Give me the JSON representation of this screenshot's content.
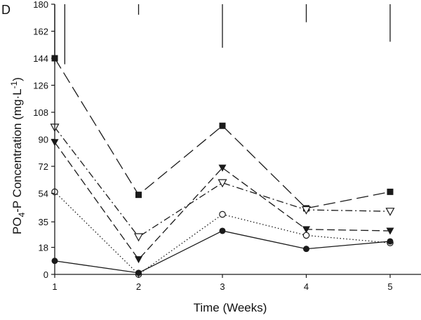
{
  "chart_data": {
    "type": "line",
    "panel_label": "D",
    "xlabel": "Time (Weeks)",
    "ylabel_main": "PO",
    "ylabel_sub": "4",
    "ylabel_rest": "-P Concentration (mg·L",
    "ylabel_sup": "-1",
    "ylabel_close": ")",
    "x": [
      1,
      2,
      3,
      4,
      5
    ],
    "xlim": [
      1,
      5.35
    ],
    "x_ticks": [
      "1",
      "2",
      "3",
      "4",
      "5"
    ],
    "ylim": [
      0,
      180
    ],
    "y_ticks": [
      0,
      18,
      35,
      54,
      72,
      90,
      108,
      126,
      144,
      162,
      180
    ],
    "y_tick_labels": [
      "0",
      "18",
      "35",
      "54",
      "72",
      "90",
      "108",
      "126",
      "144",
      "162",
      "180"
    ],
    "grid": false,
    "series": [
      {
        "name": "filled-square",
        "marker": "square-filled",
        "dash": "long-dash",
        "values": [
          144,
          53,
          99,
          44,
          55
        ]
      },
      {
        "name": "open-triangle-down",
        "marker": "triangle-down-open",
        "dash": "dash-dot",
        "values": [
          98,
          25,
          61,
          43,
          42
        ]
      },
      {
        "name": "filled-triangle-down",
        "marker": "triangle-down-filled",
        "dash": "medium-dash",
        "values": [
          88,
          10,
          71,
          30,
          29
        ]
      },
      {
        "name": "open-circle",
        "marker": "circle-open",
        "dash": "dotted",
        "values": [
          55,
          0,
          40,
          26,
          21
        ]
      },
      {
        "name": "filled-circle",
        "marker": "circle-filled",
        "dash": "solid",
        "values": [
          9,
          1,
          29,
          17,
          22
        ]
      }
    ],
    "error_bars": [
      {
        "x": 1.0,
        "low": 140,
        "high": 180
      },
      {
        "x": 1.12,
        "low": 140,
        "high": 180
      },
      {
        "x": 2,
        "low": 173,
        "high": 180
      },
      {
        "x": 3,
        "low": 151,
        "high": 180
      },
      {
        "x": 4,
        "low": 168,
        "high": 180
      },
      {
        "x": 5,
        "low": 155,
        "high": 180
      }
    ],
    "colors": {
      "ink": "#1a1a1a",
      "background": "#ffffff"
    }
  }
}
